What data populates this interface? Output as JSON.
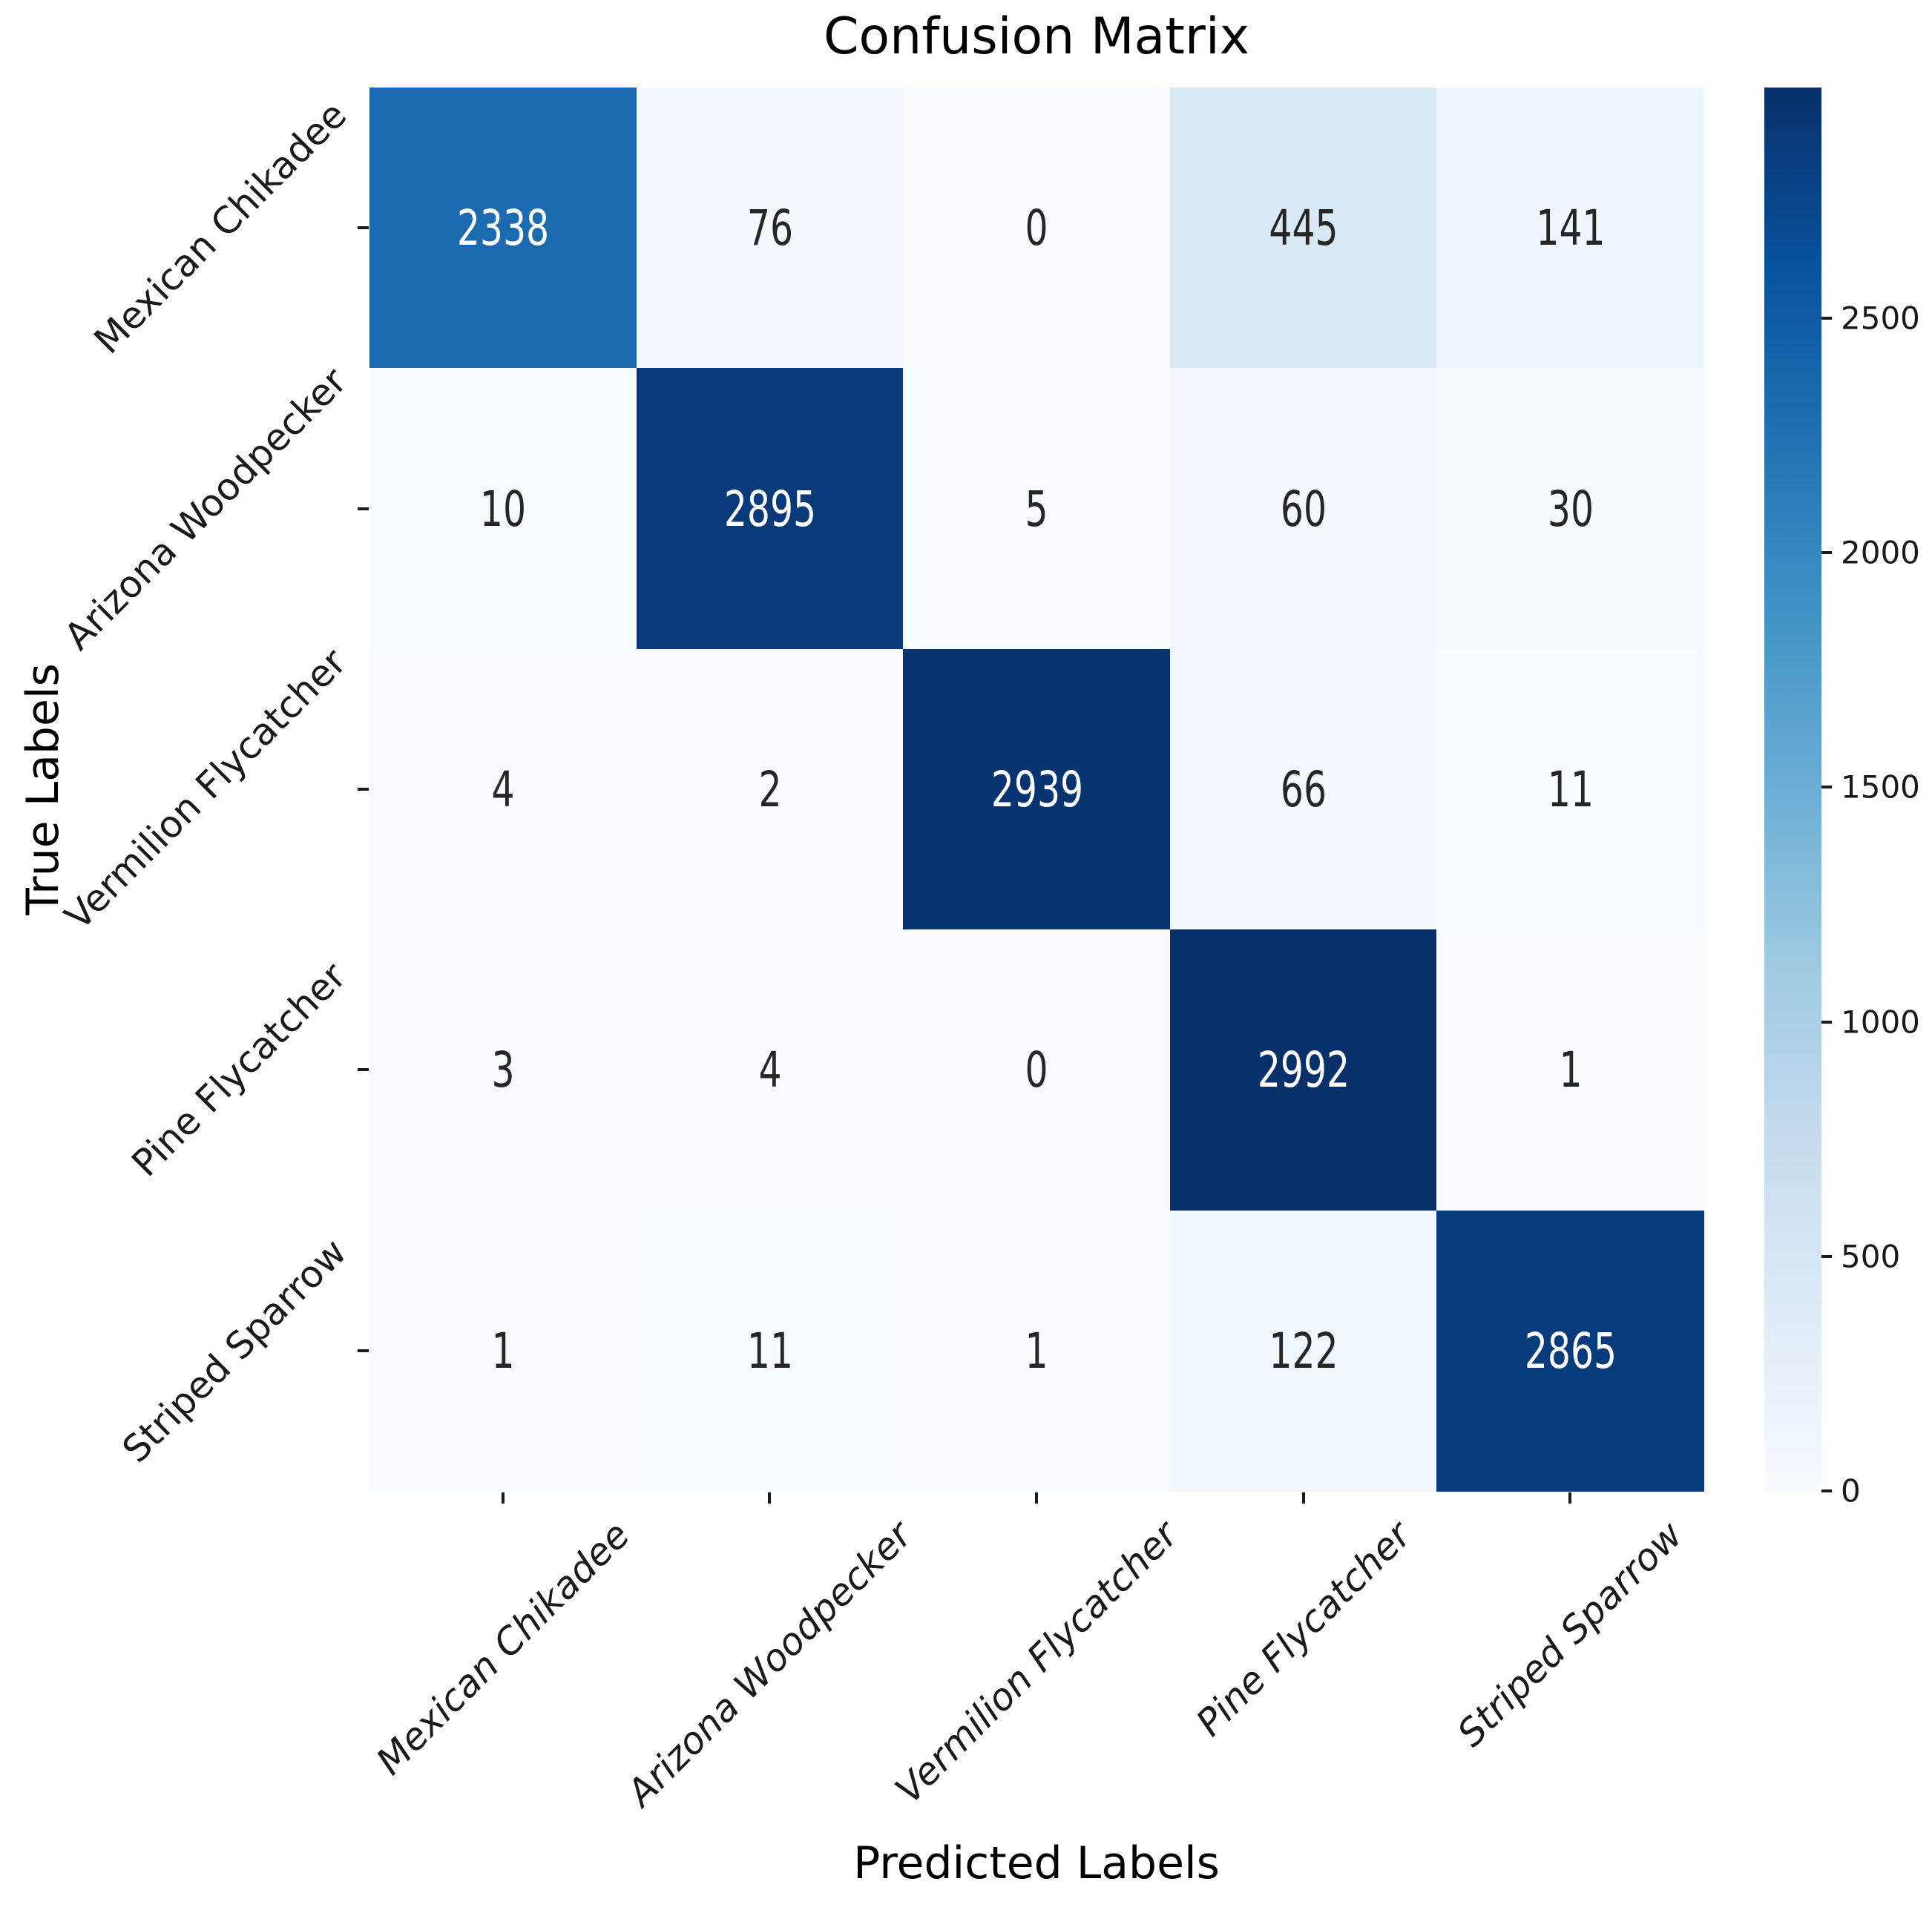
{
  "figure": {
    "background_color": "#ffffff",
    "axis_text_color": "#1a1a1a",
    "title_color": "#000000"
  },
  "chart_data": {
    "type": "heatmap",
    "title": "Confusion Matrix",
    "xlabel": "Predicted Labels",
    "ylabel": "True Labels",
    "x_categories": [
      "Mexican Chikadee",
      "Arizona Woodpecker",
      "Vermilion Flycatcher",
      "Pine Flycatcher",
      "Striped Sparrow"
    ],
    "y_categories": [
      "Mexican Chikadee",
      "Arizona Woodpecker",
      "Vermilion Flycatcher",
      "Pine Flycatcher",
      "Striped Sparrow"
    ],
    "matrix": [
      [
        2338,
        76,
        0,
        445,
        141
      ],
      [
        10,
        2895,
        5,
        60,
        30
      ],
      [
        4,
        2,
        2939,
        66,
        11
      ],
      [
        3,
        4,
        0,
        2992,
        1
      ],
      [
        1,
        11,
        1,
        122,
        2865
      ]
    ],
    "vmin": 0,
    "vmax": 2992,
    "colormap_name": "Blues",
    "colormap_stops": [
      "#f7fbff",
      "#deebf7",
      "#c6dbef",
      "#9ecae1",
      "#6baed6",
      "#4292c6",
      "#2171b5",
      "#08519c",
      "#08306b"
    ],
    "colorbar_ticks": [
      0,
      500,
      1000,
      1500,
      2000,
      2500
    ],
    "annotation_colors": {
      "on_dark": "#ffffff",
      "on_light": "#262626"
    },
    "legend_position": "colorbar-right",
    "grid": false,
    "annotations_shown": true
  }
}
